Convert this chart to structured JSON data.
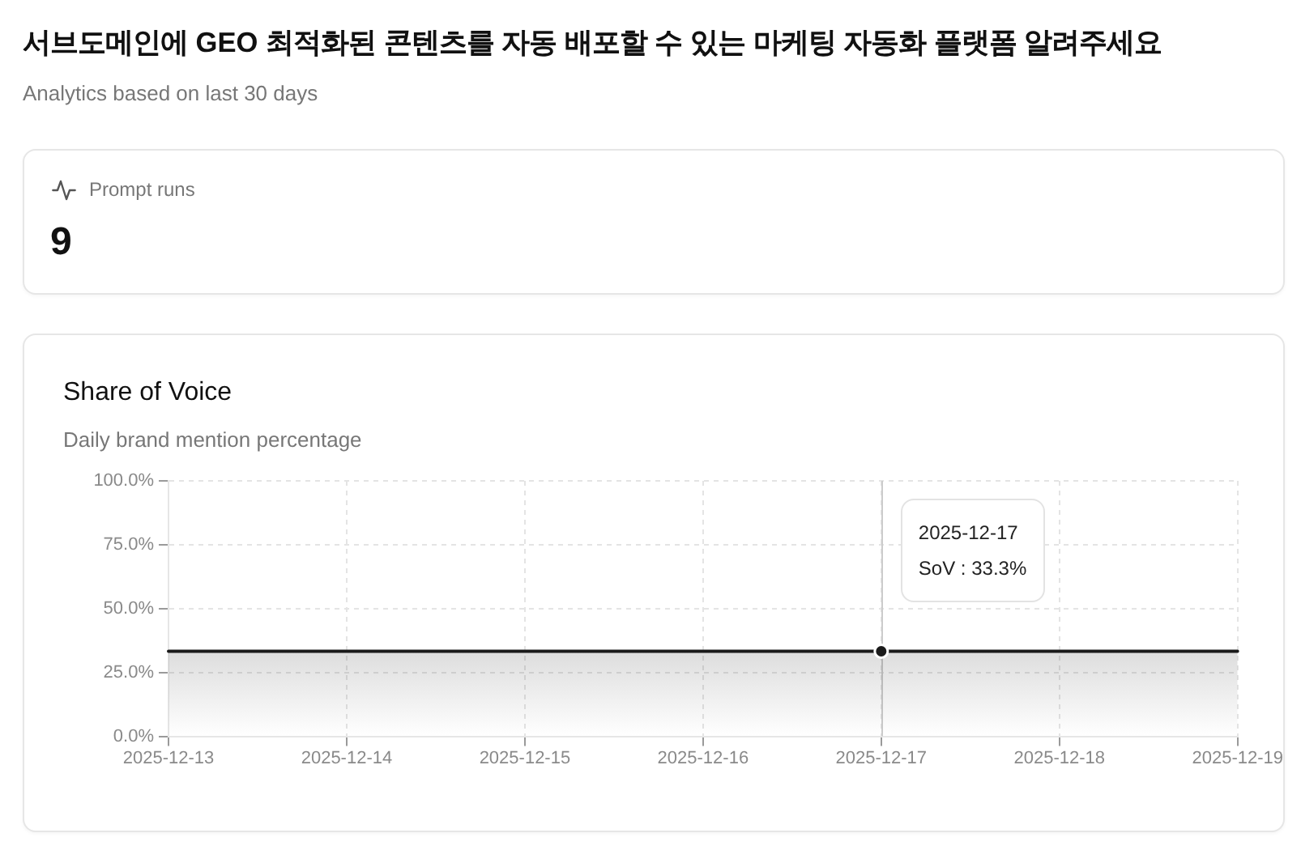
{
  "chart_data": [
    {
      "type": "other",
      "title": "서브도메인에 GEO 최적화된 콘텐츠를 자동 배포할 수 있는 마케팅 자동화 플랫폼 알려주세요",
      "subtitle": "Analytics based on last 30 days",
      "categories": [
        "Prompt runs"
      ],
      "values": [
        9
      ],
      "data_labels": true
    },
    {
      "type": "area",
      "title": "Share of Voice",
      "subtitle": "Daily brand mention percentage",
      "categories": [
        "2025-12-13",
        "2025-12-14",
        "2025-12-15",
        "2025-12-16",
        "2025-12-17",
        "2025-12-18",
        "2025-12-19"
      ],
      "values": [
        33.3,
        33.3,
        33.3,
        33.3,
        33.3,
        33.3,
        33.3
      ],
      "color": "#1a1a1a",
      "line_style": "solid",
      "ylim": [
        0,
        100
      ],
      "yticks": [
        {
          "value": 0,
          "label": "0.0%"
        },
        {
          "value": 25,
          "label": "25.0%"
        },
        {
          "value": 50,
          "label": "50.0%"
        },
        {
          "value": 75,
          "label": "75.0%"
        },
        {
          "value": 100,
          "label": "100.0%"
        }
      ],
      "grid": true,
      "ref_lines": [
        {
          "axis": "x",
          "value": "2025-12-17",
          "color": "#cccccc"
        }
      ],
      "annotations": [
        "2025-12-17\nSoV : 33.3%"
      ]
    }
  ]
}
